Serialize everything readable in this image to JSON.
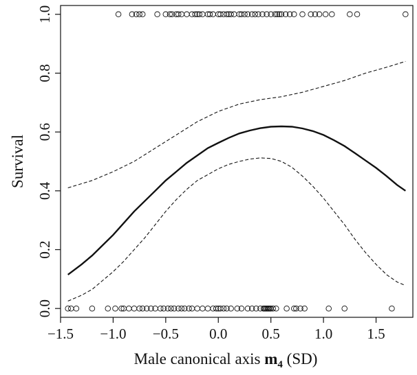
{
  "chart_data": {
    "type": "line",
    "title": "",
    "xlabel": {
      "prefix": "Male canonical axis ",
      "bold": "m",
      "subscript": "4",
      "suffix": " (SD)"
    },
    "ylabel": "Survival",
    "xlim": [
      -1.5,
      1.85
    ],
    "ylim": [
      -0.03,
      1.03
    ],
    "xticks": [
      -1.5,
      -1.0,
      -0.5,
      0.0,
      0.5,
      1.0,
      1.5
    ],
    "xtick_labels": [
      "−1.5",
      "−1.0",
      "−0.5",
      "0.0",
      "0.5",
      "1.0",
      "1.5"
    ],
    "yticks": [
      0.0,
      0.2,
      0.4,
      0.6,
      0.8,
      1.0
    ],
    "ytick_labels": [
      "0.0",
      "0.2",
      "0.4",
      "0.6",
      "0.8",
      "1.0"
    ],
    "grid": false,
    "legend": "none",
    "series": [
      {
        "role": "fit",
        "style": "solid",
        "x": [
          -1.43,
          -1.3,
          -1.2,
          -1.1,
          -1.0,
          -0.9,
          -0.8,
          -0.7,
          -0.6,
          -0.5,
          -0.4,
          -0.3,
          -0.2,
          -0.1,
          0.0,
          0.1,
          0.2,
          0.3,
          0.4,
          0.5,
          0.6,
          0.7,
          0.8,
          0.9,
          1.0,
          1.1,
          1.2,
          1.3,
          1.4,
          1.5,
          1.6,
          1.7,
          1.78
        ],
        "y": [
          0.115,
          0.15,
          0.18,
          0.215,
          0.25,
          0.29,
          0.33,
          0.365,
          0.4,
          0.435,
          0.465,
          0.495,
          0.52,
          0.545,
          0.563,
          0.58,
          0.595,
          0.605,
          0.613,
          0.618,
          0.619,
          0.618,
          0.612,
          0.603,
          0.59,
          0.572,
          0.552,
          0.528,
          0.503,
          0.478,
          0.45,
          0.42,
          0.4
        ]
      },
      {
        "role": "upper-ci",
        "style": "dashed",
        "x": [
          -1.43,
          -1.2,
          -1.0,
          -0.8,
          -0.6,
          -0.4,
          -0.2,
          0.0,
          0.2,
          0.4,
          0.6,
          0.8,
          1.0,
          1.2,
          1.4,
          1.6,
          1.78
        ],
        "y": [
          0.41,
          0.435,
          0.465,
          0.5,
          0.545,
          0.59,
          0.635,
          0.67,
          0.695,
          0.71,
          0.72,
          0.735,
          0.755,
          0.775,
          0.8,
          0.82,
          0.84
        ]
      },
      {
        "role": "lower-ci",
        "style": "dashed",
        "x": [
          -1.43,
          -1.3,
          -1.2,
          -1.1,
          -1.0,
          -0.9,
          -0.8,
          -0.7,
          -0.6,
          -0.5,
          -0.4,
          -0.3,
          -0.2,
          -0.1,
          0.0,
          0.1,
          0.2,
          0.3,
          0.4,
          0.5,
          0.6,
          0.7,
          0.8,
          0.9,
          1.0,
          1.1,
          1.2,
          1.3,
          1.4,
          1.5,
          1.6,
          1.7,
          1.78
        ],
        "y": [
          0.025,
          0.045,
          0.065,
          0.095,
          0.125,
          0.16,
          0.2,
          0.24,
          0.285,
          0.33,
          0.37,
          0.405,
          0.435,
          0.455,
          0.475,
          0.49,
          0.5,
          0.508,
          0.512,
          0.51,
          0.5,
          0.48,
          0.45,
          0.415,
          0.375,
          0.33,
          0.285,
          0.235,
          0.19,
          0.15,
          0.115,
          0.09,
          0.078
        ]
      }
    ],
    "points_survived": {
      "y": 1.0,
      "x": [
        -0.95,
        -0.82,
        -0.78,
        -0.75,
        -0.72,
        -0.58,
        -0.5,
        -0.46,
        -0.44,
        -0.4,
        -0.38,
        -0.35,
        -0.3,
        -0.25,
        -0.22,
        -0.2,
        -0.18,
        -0.15,
        -0.1,
        -0.08,
        -0.05,
        0.0,
        0.02,
        0.05,
        0.08,
        0.1,
        0.12,
        0.15,
        0.2,
        0.22,
        0.25,
        0.28,
        0.32,
        0.35,
        0.38,
        0.42,
        0.46,
        0.5,
        0.54,
        0.56,
        0.58,
        0.6,
        0.64,
        0.68,
        0.72,
        0.8,
        0.88,
        0.92,
        0.96,
        1.02,
        1.08,
        1.25,
        1.32,
        1.78
      ]
    },
    "points_died": {
      "y": 0.0,
      "x": [
        -1.43,
        -1.4,
        -1.35,
        -1.2,
        -1.05,
        -0.98,
        -0.92,
        -0.9,
        -0.85,
        -0.8,
        -0.75,
        -0.72,
        -0.68,
        -0.64,
        -0.6,
        -0.55,
        -0.52,
        -0.48,
        -0.45,
        -0.42,
        -0.38,
        -0.35,
        -0.32,
        -0.28,
        -0.25,
        -0.2,
        -0.15,
        -0.1,
        -0.05,
        -0.02,
        0.0,
        0.02,
        0.05,
        0.08,
        0.12,
        0.18,
        0.22,
        0.28,
        0.32,
        0.36,
        0.4,
        0.43,
        0.44,
        0.45,
        0.46,
        0.47,
        0.48,
        0.49,
        0.5,
        0.52,
        0.55,
        0.65,
        0.72,
        0.74,
        0.78,
        0.82,
        1.05,
        1.2,
        1.65
      ]
    }
  }
}
